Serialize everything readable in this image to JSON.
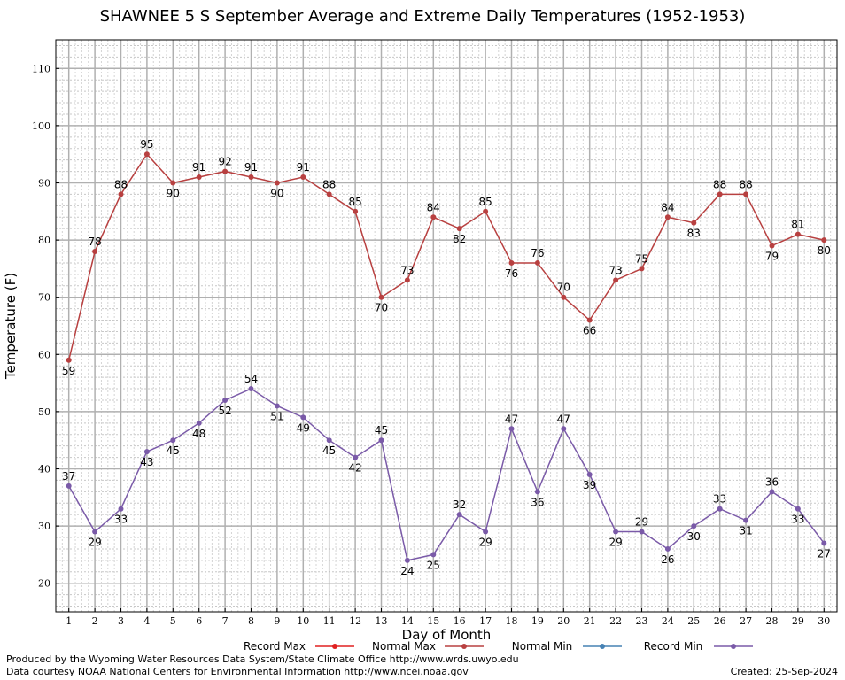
{
  "chart_data": {
    "type": "line",
    "title": "SHAWNEE 5 S September Average and Extreme Daily Temperatures (1952-1953)",
    "xlabel": "Day of Month",
    "ylabel": "Temperature (F)",
    "x": [
      1,
      2,
      3,
      4,
      5,
      6,
      7,
      8,
      9,
      10,
      11,
      12,
      13,
      14,
      15,
      16,
      17,
      18,
      19,
      20,
      21,
      22,
      23,
      24,
      25,
      26,
      27,
      28,
      29,
      30
    ],
    "xlim": [
      0.5,
      30.5
    ],
    "ylim": [
      15,
      115
    ],
    "yticks": [
      20,
      30,
      40,
      50,
      60,
      70,
      80,
      90,
      100,
      110
    ],
    "grid": true,
    "legend_position": "bottom",
    "legend": [
      {
        "name": "Record Max",
        "color": "#e02020"
      },
      {
        "name": "Normal Max",
        "color": "#b84040"
      },
      {
        "name": "Normal Min",
        "color": "#4682b4"
      },
      {
        "name": "Record Min",
        "color": "#7a5aa8"
      }
    ],
    "series": [
      {
        "name": "Normal Max",
        "color": "#b84040",
        "values": [
          59,
          78,
          88,
          95,
          90,
          91,
          92,
          91,
          90,
          91,
          88,
          85,
          70,
          73,
          84,
          82,
          85,
          76,
          76,
          70,
          66,
          73,
          75,
          84,
          83,
          88,
          88,
          79,
          81,
          80
        ]
      },
      {
        "name": "Record Min",
        "color": "#7a5aa8",
        "values": [
          37,
          29,
          33,
          43,
          45,
          48,
          52,
          54,
          51,
          49,
          45,
          42,
          45,
          24,
          25,
          32,
          29,
          47,
          36,
          47,
          39,
          29,
          29,
          26,
          30,
          33,
          31,
          36,
          33,
          27
        ]
      }
    ]
  },
  "footer": {
    "credit_line1": "Produced by the Wyoming Water Resources Data System/State Climate Office http://www.wrds.uwyo.edu",
    "credit_line2": "Data courtesy NOAA National Centers for Environmental Information http://www.ncei.noaa.gov",
    "created": "Created:  25-Sep-2024"
  }
}
